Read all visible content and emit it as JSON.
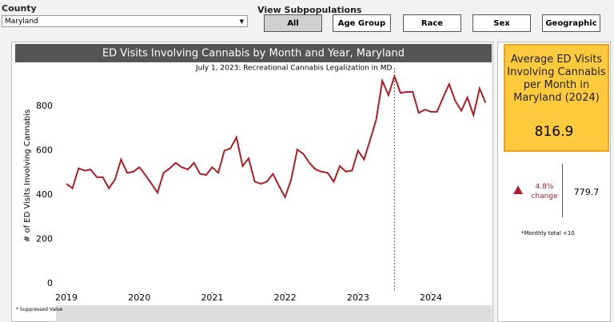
{
  "filters": {
    "county_label": "County",
    "county_value": "Maryland",
    "subpopulations_label": "View Subpopulations",
    "buttons": [
      "All",
      "Age Group",
      "Race",
      "Sex",
      "Geographic"
    ]
  },
  "kpi": {
    "title": "Average ED Visits Involving Cannabis per Month in Maryland (2024)",
    "value": "816.9",
    "change": "4.8%",
    "change_label": "change",
    "previous": "779.7"
  },
  "footnotes": {
    "monthly": "*Monthly total <10",
    "suppressed": "* Suppressed Value"
  },
  "chart_data": {
    "type": "line",
    "title": "ED Visits Involving Cannabis by Month and Year, Maryland",
    "y_label": "# of ED Visits Involving Cannabis",
    "color": "#b01c24",
    "annotation": {
      "text": "July 1, 2023: Recreational Cannabis Legalization in MD",
      "x": 2023.5
    },
    "x": [
      2019,
      2019.083,
      2019.167,
      2019.25,
      2019.333,
      2019.417,
      2019.5,
      2019.583,
      2019.667,
      2019.75,
      2019.833,
      2019.917,
      2020,
      2020.083,
      2020.167,
      2020.25,
      2020.333,
      2020.417,
      2020.5,
      2020.583,
      2020.667,
      2020.75,
      2020.833,
      2020.917,
      2021,
      2021.083,
      2021.167,
      2021.25,
      2021.333,
      2021.417,
      2021.5,
      2021.583,
      2021.667,
      2021.75,
      2021.833,
      2021.917,
      2022,
      2022.083,
      2022.167,
      2022.25,
      2022.333,
      2022.417,
      2022.5,
      2022.583,
      2022.667,
      2022.75,
      2022.833,
      2022.917,
      2023,
      2023.083,
      2023.167,
      2023.25,
      2023.333,
      2023.417,
      2023.5,
      2023.583,
      2023.667,
      2023.75,
      2023.833,
      2023.917,
      2024,
      2024.083,
      2024.167,
      2024.25,
      2024.333,
      2024.417,
      2024.5,
      2024.583,
      2024.667,
      2024.75
    ],
    "values": [
      450,
      430,
      520,
      510,
      515,
      480,
      480,
      430,
      470,
      560,
      500,
      505,
      525,
      490,
      450,
      410,
      500,
      520,
      545,
      525,
      515,
      545,
      495,
      490,
      525,
      500,
      600,
      610,
      660,
      530,
      565,
      460,
      450,
      460,
      495,
      440,
      390,
      470,
      605,
      585,
      545,
      515,
      505,
      500,
      460,
      530,
      505,
      510,
      600,
      560,
      650,
      740,
      915,
      850,
      935,
      860,
      865,
      865,
      770,
      785,
      775,
      775,
      840,
      900,
      825,
      780,
      840,
      760,
      880,
      815
    ],
    "xlim": [
      2018.857,
      2024.8
    ],
    "xticks": [
      2019,
      2020,
      2021,
      2022,
      2023,
      2024
    ],
    "ylim": [
      -36,
      973
    ],
    "yticks": [
      0,
      200,
      400,
      600,
      800
    ]
  }
}
